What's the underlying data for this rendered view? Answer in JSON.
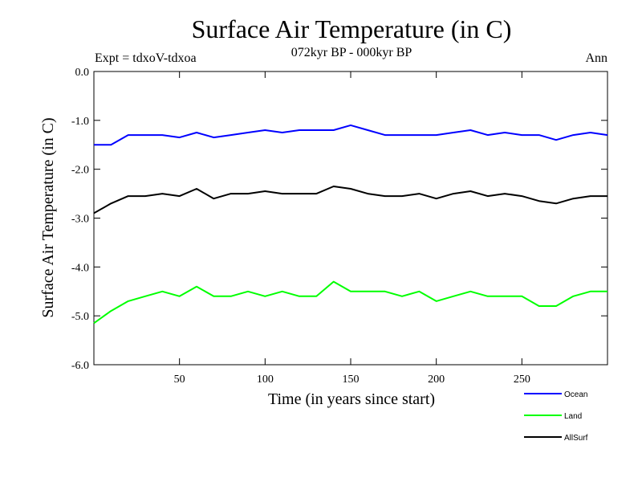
{
  "chart_data": {
    "type": "line",
    "title": "Surface Air Temperature (in C)",
    "subtitle": "072kyr BP - 000kyr BP",
    "experiment_label": "Expt = tdxoV-tdxoa",
    "season_label": "Ann",
    "xlabel": "Time (in years since start)",
    "ylabel": "Surface Air Temperature (in C)",
    "xlim": [
      0,
      300
    ],
    "ylim": [
      -6.0,
      0.0
    ],
    "x_ticks": [
      50,
      100,
      150,
      200,
      250
    ],
    "y_ticks": [
      0.0,
      -1.0,
      -2.0,
      -3.0,
      -4.0,
      -5.0,
      -6.0
    ],
    "y_tick_labels": [
      "0.0",
      "-1.0",
      "-2.0",
      "-3.0",
      "-4.0",
      "-5.0",
      "-6.0"
    ],
    "grid": false,
    "legend_position": "bottom-right, below plot",
    "x": [
      0,
      10,
      20,
      30,
      40,
      50,
      60,
      70,
      80,
      90,
      100,
      110,
      120,
      130,
      140,
      150,
      160,
      170,
      180,
      190,
      200,
      210,
      220,
      230,
      240,
      250,
      260,
      270,
      280,
      290,
      300
    ],
    "series": [
      {
        "name": "Ocean",
        "color": "#0000ff",
        "values": [
          -1.5,
          -1.5,
          -1.3,
          -1.3,
          -1.3,
          -1.35,
          -1.25,
          -1.35,
          -1.3,
          -1.25,
          -1.2,
          -1.25,
          -1.2,
          -1.2,
          -1.2,
          -1.1,
          -1.2,
          -1.3,
          -1.3,
          -1.3,
          -1.3,
          -1.25,
          -1.2,
          -1.3,
          -1.25,
          -1.3,
          -1.3,
          -1.4,
          -1.3,
          -1.25,
          -1.3
        ]
      },
      {
        "name": "Land",
        "color": "#00ff00",
        "values": [
          -5.15,
          -4.9,
          -4.7,
          -4.6,
          -4.5,
          -4.6,
          -4.4,
          -4.6,
          -4.6,
          -4.5,
          -4.6,
          -4.5,
          -4.6,
          -4.6,
          -4.3,
          -4.5,
          -4.5,
          -4.5,
          -4.6,
          -4.5,
          -4.7,
          -4.6,
          -4.5,
          -4.6,
          -4.6,
          -4.6,
          -4.8,
          -4.8,
          -4.6,
          -4.5,
          -4.5
        ]
      },
      {
        "name": "AllSurf",
        "color": "#000000",
        "values": [
          -2.9,
          -2.7,
          -2.55,
          -2.55,
          -2.5,
          -2.55,
          -2.4,
          -2.6,
          -2.5,
          -2.5,
          -2.45,
          -2.5,
          -2.5,
          -2.5,
          -2.35,
          -2.4,
          -2.5,
          -2.55,
          -2.55,
          -2.5,
          -2.6,
          -2.5,
          -2.45,
          -2.55,
          -2.5,
          -2.55,
          -2.65,
          -2.7,
          -2.6,
          -2.55,
          -2.55
        ]
      }
    ]
  }
}
